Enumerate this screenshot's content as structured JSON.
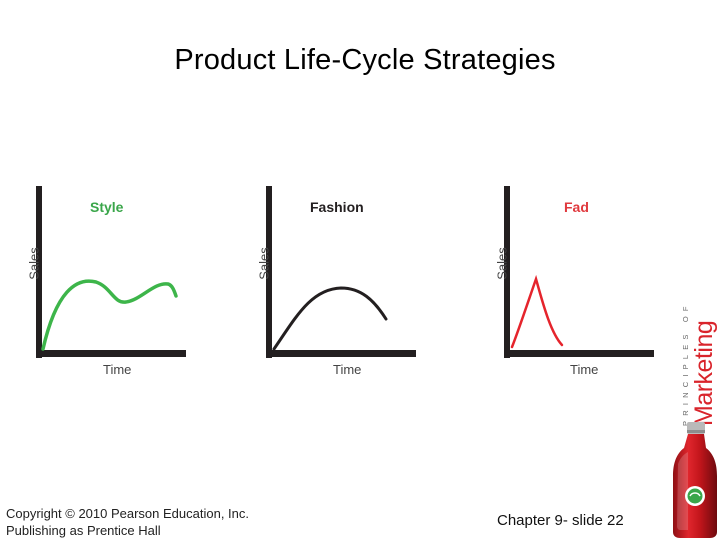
{
  "title": "Product Life-Cycle Strategies",
  "panels": [
    {
      "title": "Style",
      "title_color": "#3aa64a",
      "curve_color": "#3db54a",
      "ylabel": "Sales",
      "xlabel": "Time"
    },
    {
      "title": "Fashion",
      "title_color": "#231f20",
      "curve_color": "#231f20",
      "ylabel": "Sales",
      "xlabel": "Time"
    },
    {
      "title": "Fad",
      "title_color": "#e0393e",
      "curve_color": "#e5242c",
      "ylabel": "Sales",
      "xlabel": "Time"
    }
  ],
  "footer": {
    "copyright_line1": "Copyright © 2010 Pearson Education, Inc.",
    "copyright_line2": "Publishing as Prentice Hall",
    "slide_ref": "Chapter 9- slide 22"
  },
  "brand": {
    "small_text": "PRINCIPLES OF",
    "big_text": "Marketing",
    "color": "#d9242b"
  }
}
